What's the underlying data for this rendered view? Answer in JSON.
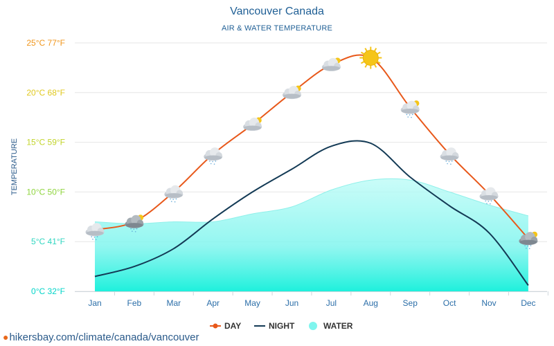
{
  "chart_data": {
    "type": "line",
    "title": "Vancouver Canada",
    "subtitle": "AIR & WATER TEMPERATURE",
    "ylabel": "TEMPERATURE",
    "categories": [
      "Jan",
      "Feb",
      "Mar",
      "Apr",
      "May",
      "Jun",
      "Jul",
      "Aug",
      "Sep",
      "Oct",
      "Nov",
      "Dec"
    ],
    "y_ticks": [
      {
        "value": 0,
        "label": "0°C 32°F",
        "color": "#00d4c8"
      },
      {
        "value": 5,
        "label": "5°C 41°F",
        "color": "#2fd6c0"
      },
      {
        "value": 10,
        "label": "10°C 50°F",
        "color": "#8ed43c"
      },
      {
        "value": 15,
        "label": "15°C 59°F",
        "color": "#c2d42a"
      },
      {
        "value": 20,
        "label": "20°C 68°F",
        "color": "#e0c81e"
      },
      {
        "value": 25,
        "label": "25°C 77°F",
        "color": "#f0961c"
      }
    ],
    "ylim": [
      0,
      25
    ],
    "grid": true,
    "legend_position": "bottom",
    "series": [
      {
        "name": "DAY",
        "color": "#e8581a",
        "values": [
          6.2,
          7.0,
          10.0,
          13.8,
          16.8,
          20.0,
          22.8,
          23.5,
          18.5,
          13.8,
          9.8,
          5.3
        ]
      },
      {
        "name": "NIGHT",
        "color": "#133a55",
        "values": [
          1.5,
          2.5,
          4.3,
          7.3,
          10.0,
          12.3,
          14.6,
          14.9,
          11.5,
          8.6,
          5.9,
          0.6
        ]
      },
      {
        "name": "WATER",
        "color": "#7ff5ee",
        "values": [
          7.0,
          6.8,
          7.0,
          7.0,
          7.8,
          8.5,
          10.2,
          11.2,
          11.2,
          10.0,
          8.7,
          7.6
        ]
      }
    ],
    "weather_icons": [
      "cloud-rain",
      "cloud-sun-rain-heavy",
      "cloud-rain",
      "cloud-rain",
      "cloud-sun",
      "cloud-sun",
      "cloud-sun",
      "sun",
      "cloud-sun-rain",
      "cloud-rain",
      "cloud-rain",
      "cloud-sun-rain-heavy"
    ]
  },
  "footer": {
    "url": "hikersbay.com/climate/canada/vancouver"
  }
}
